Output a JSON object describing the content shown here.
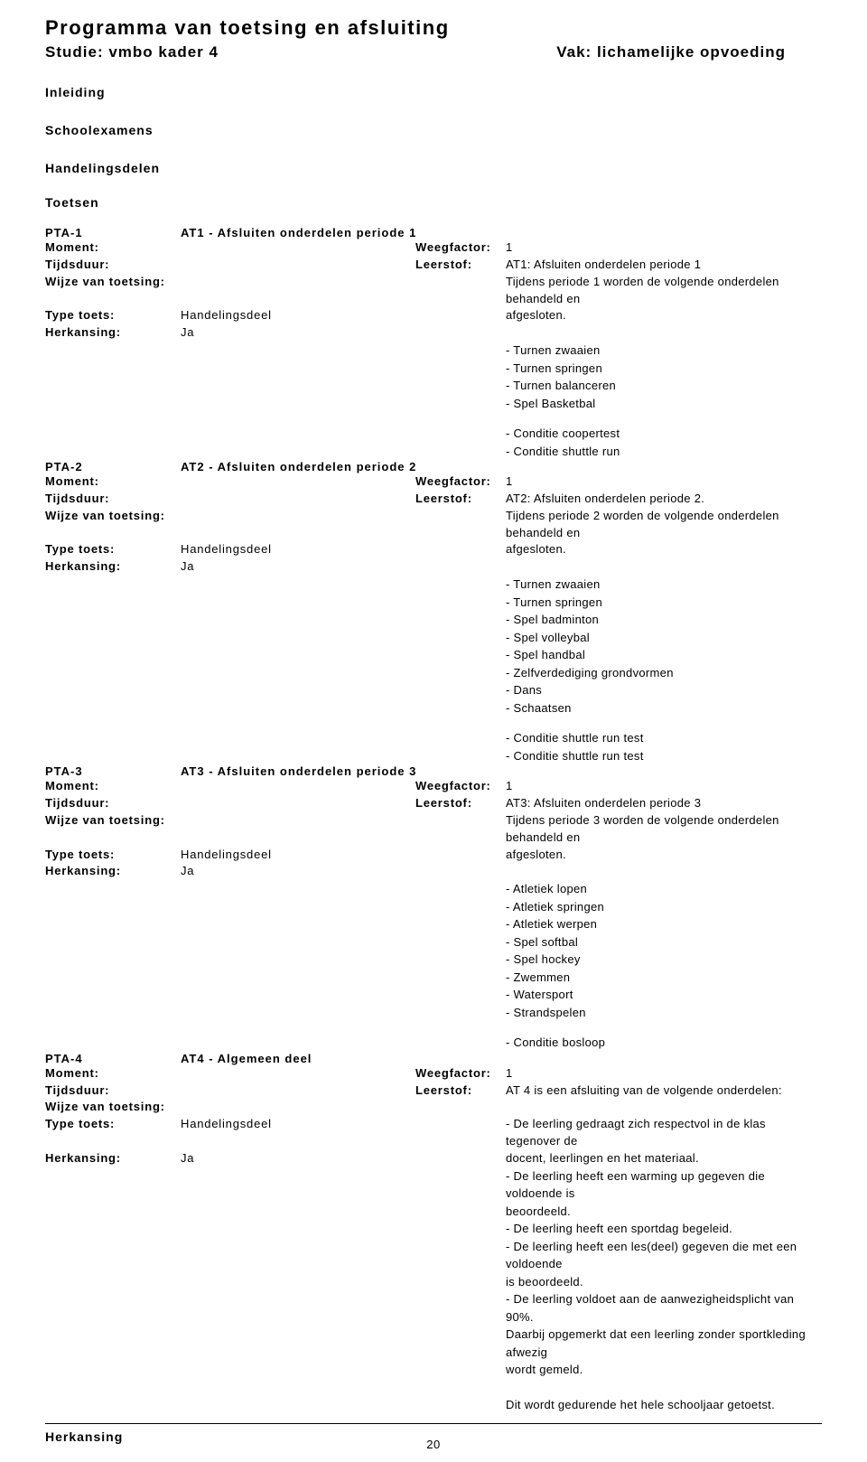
{
  "header": {
    "title": "Programma van toetsing en afsluiting",
    "study_label": "Studie:",
    "study_value": "vmbo kader 4",
    "subject_label": "Vak:",
    "subject_value": "lichamelijke opvoeding"
  },
  "sections": {
    "inleiding": "Inleiding",
    "schoolexamens": "Schoolexamens",
    "handelingsdelen": "Handelingsdelen",
    "toetsen": "Toetsen",
    "herkansing": "Herkansing"
  },
  "field_labels": {
    "moment": "Moment:",
    "tijdsduur": "Tijdsduur:",
    "wijze": "Wijze van toetsing:",
    "type": "Type toets:",
    "herkansing": "Herkansing:",
    "weegfactor": "Weegfactor:",
    "leerstof": "Leerstof:"
  },
  "pta": [
    {
      "code": "PTA-1",
      "title": "AT1 - Afsluiten onderdelen periode 1",
      "weegfactor": "1",
      "type": "Handelingsdeel",
      "herkansing": "Ja",
      "leerstof_first": "AT1: Afsluiten onderdelen periode 1",
      "leerstof_rest": "Tijdens periode 1 worden de volgende onderdelen behandeld en\nafgesloten.\n\n- Turnen zwaaien\n- Turnen springen\n- Turnen balanceren\n- Spel Basketbal",
      "addendum": "- Conditie coopertest\n- Conditie shuttle run"
    },
    {
      "code": "PTA-2",
      "title": "AT2 - Afsluiten onderdelen periode 2",
      "weegfactor": "1",
      "type": "Handelingsdeel",
      "herkansing": "Ja",
      "leerstof_first": "AT2: Afsluiten onderdelen periode 2.",
      "leerstof_rest": "Tijdens periode 2 worden de volgende onderdelen behandeld en\nafgesloten.\n\n- Turnen zwaaien\n- Turnen springen\n- Spel badminton\n- Spel volleybal\n- Spel handbal\n- Zelfverdediging grondvormen\n- Dans\n- Schaatsen",
      "addendum": "- Conditie shuttle run test\n- Conditie shuttle run test"
    },
    {
      "code": "PTA-3",
      "title": "AT3 - Afsluiten onderdelen periode 3",
      "weegfactor": "1",
      "type": "Handelingsdeel",
      "herkansing": "Ja",
      "leerstof_first": "AT3: Afsluiten onderdelen periode 3",
      "leerstof_rest": "Tijdens periode 3 worden de volgende onderdelen behandeld en\nafgesloten.\n\n- Atletiek lopen\n- Atletiek springen\n- Atletiek werpen\n- Spel softbal\n- Spel hockey\n- Zwemmen\n- Watersport\n- Strandspelen",
      "addendum": "- Conditie bosloop"
    },
    {
      "code": "PTA-4",
      "title": "AT4 - Algemeen deel",
      "weegfactor": "1",
      "type": "Handelingsdeel",
      "herkansing": "Ja",
      "leerstof_first": "AT 4 is een afsluiting van de volgende onderdelen:",
      "leerstof_rest": "\n- De leerling gedraagt zich respectvol in de klas tegenover de\ndocent, leerlingen en het materiaal.\n- De leerling heeft een warming up gegeven die voldoende is\nbeoordeeld.\n- De leerling heeft een sportdag begeleid.\n- De leerling heeft een les(deel) gegeven die met een voldoende\nis beoordeeld.\n- De leerling voldoet aan de aanwezigheidsplicht van 90%.\nDaarbij opgemerkt dat een leerling zonder sportkleding afwezig\nwordt gemeld.\n\nDit wordt gedurende het hele schooljaar getoetst.",
      "addendum": ""
    }
  ],
  "page_number": "20"
}
